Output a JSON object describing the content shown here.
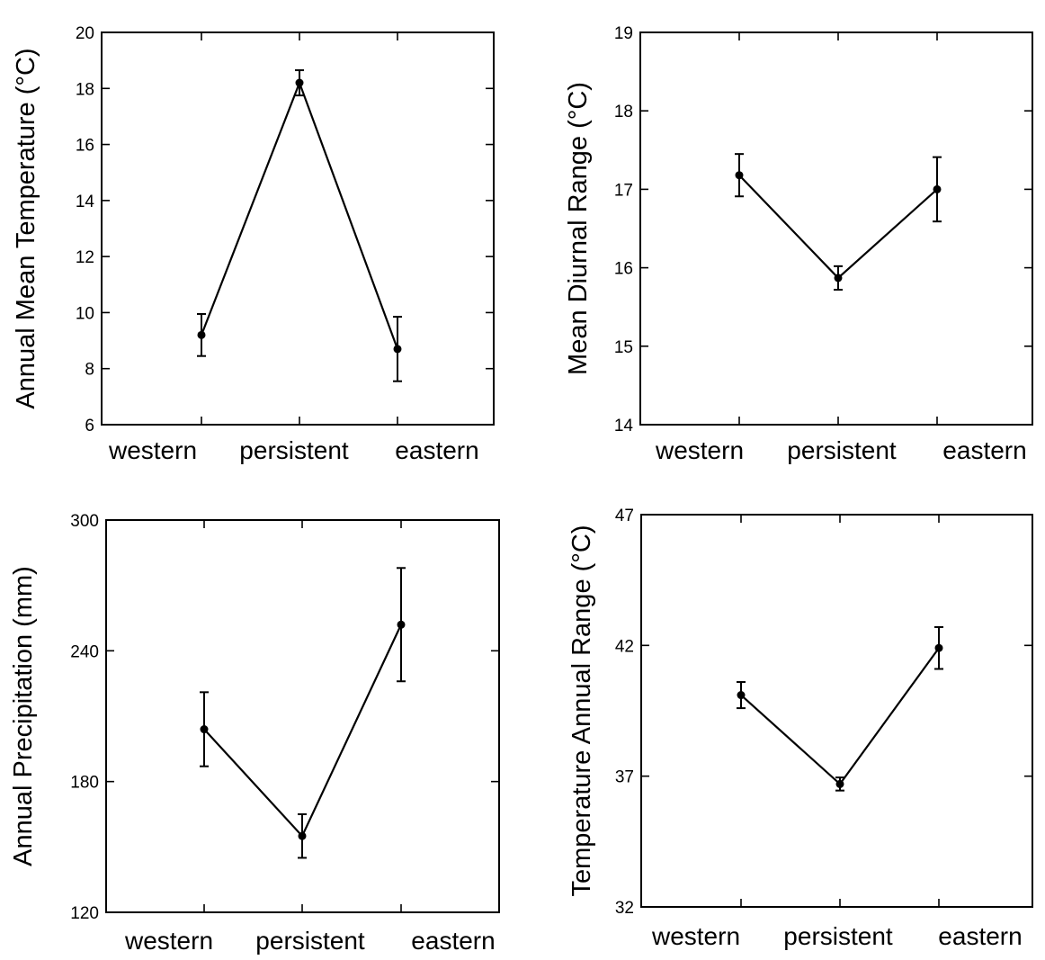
{
  "chart_data": [
    {
      "type": "line",
      "categories": [
        "western",
        "persistent",
        "eastern"
      ],
      "values": [
        9.2,
        18.2,
        8.7
      ],
      "error": [
        0.75,
        0.45,
        1.15
      ],
      "ylabel": "Annual Mean Temperature (°C)",
      "xlabel": "",
      "ylim": [
        6,
        20
      ],
      "yticks": [
        6,
        8,
        10,
        12,
        14,
        16,
        18,
        20
      ],
      "ytick_labels": [
        "6",
        "8",
        "10",
        "12",
        "14",
        "16",
        "18",
        "20"
      ],
      "grid": false
    },
    {
      "type": "line",
      "categories": [
        "western",
        "persistent",
        "eastern"
      ],
      "values": [
        17.18,
        15.87,
        17.0
      ],
      "error": [
        0.27,
        0.15,
        0.41
      ],
      "ylabel": "Mean Diurnal Range (°C)",
      "xlabel": "",
      "ylim": [
        14,
        19
      ],
      "yticks": [
        14,
        15,
        16,
        17,
        18,
        19
      ],
      "ytick_labels": [
        "14",
        "15",
        "16",
        "17",
        "18",
        "19"
      ],
      "grid": false
    },
    {
      "type": "line",
      "categories": [
        "western",
        "persistent",
        "eastern"
      ],
      "values": [
        204,
        155,
        252
      ],
      "error": [
        17,
        10,
        26
      ],
      "ylabel": "Annual Precipitation (mm)",
      "xlabel": "",
      "ylim": [
        120,
        300
      ],
      "yticks": [
        120,
        180,
        240,
        300
      ],
      "ytick_labels": [
        "120",
        "180",
        "240",
        "300"
      ],
      "grid": false
    },
    {
      "type": "line",
      "categories": [
        "western",
        "persistent",
        "eastern"
      ],
      "values": [
        40.1,
        36.7,
        41.9
      ],
      "error": [
        0.5,
        0.25,
        0.8
      ],
      "ylabel": "Temperature Annual Range (°C)",
      "xlabel": "",
      "ylim": [
        32,
        47
      ],
      "yticks": [
        32,
        37,
        42,
        47
      ],
      "ytick_labels": [
        "32",
        "37",
        "42",
        "47"
      ],
      "grid": false
    }
  ]
}
